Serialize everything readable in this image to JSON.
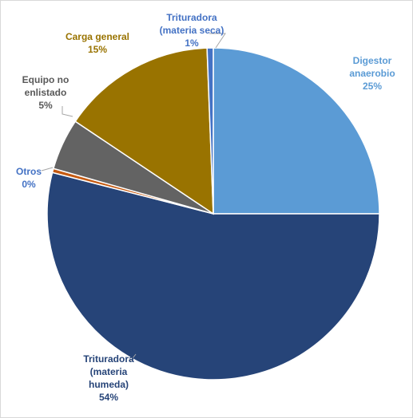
{
  "chart_data": {
    "type": "pie",
    "title": "",
    "slices": [
      {
        "label_lines": [
          "Digestor",
          "anaerobio"
        ],
        "pct_label": "25%",
        "value": 25,
        "color": "#5b9bd5",
        "label_color": "#5b9bd5"
      },
      {
        "label_lines": [
          "Trituradora",
          "(materia",
          "humeda)"
        ],
        "pct_label": "54%",
        "value": 54,
        "color": "#264478",
        "label_color": "#264478"
      },
      {
        "label_lines": [
          "Otros"
        ],
        "pct_label": "0%",
        "value": 0.4,
        "color": "#c55a11",
        "label_color": "#4472c4"
      },
      {
        "label_lines": [
          "Equipo no",
          "enlistado"
        ],
        "pct_label": "5%",
        "value": 5,
        "color": "#636363",
        "label_color": "#595959"
      },
      {
        "label_lines": [
          "Carga general"
        ],
        "pct_label": "15%",
        "value": 15,
        "color": "#997300",
        "label_color": "#997300"
      },
      {
        "label_lines": [
          "Trituradora",
          "(materia seca)"
        ],
        "pct_label": "1%",
        "value": 0.6,
        "color": "#4472c4",
        "label_color": "#4472c4"
      }
    ],
    "legend": "none"
  }
}
